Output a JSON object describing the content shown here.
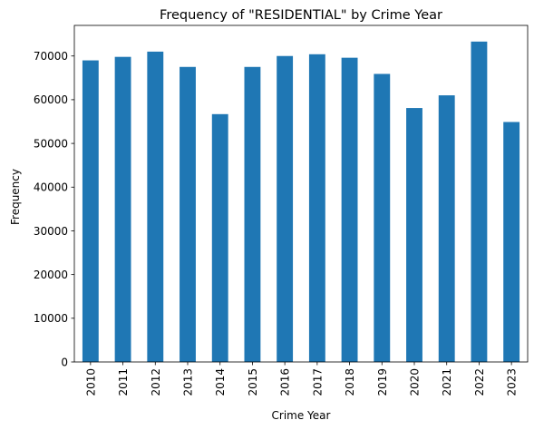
{
  "chart_data": {
    "type": "bar",
    "title": "Frequency of \"RESIDENTIAL\" by Crime Year",
    "xlabel": "Crime Year",
    "ylabel": "Frequency",
    "categories": [
      "2010",
      "2011",
      "2012",
      "2013",
      "2014",
      "2015",
      "2016",
      "2017",
      "2018",
      "2019",
      "2020",
      "2021",
      "2022",
      "2023"
    ],
    "values": [
      69000,
      69800,
      71000,
      67500,
      56700,
      67500,
      70000,
      70400,
      69600,
      65900,
      58100,
      61000,
      73300,
      54900
    ],
    "ylim": [
      0,
      77000
    ],
    "yticks": [
      0,
      10000,
      20000,
      30000,
      40000,
      50000,
      60000,
      70000
    ],
    "ytick_labels": [
      "0",
      "10000",
      "20000",
      "30000",
      "40000",
      "50000",
      "60000",
      "70000"
    ],
    "grid": false,
    "legend": "none",
    "bar_color": "#1f77b4"
  }
}
